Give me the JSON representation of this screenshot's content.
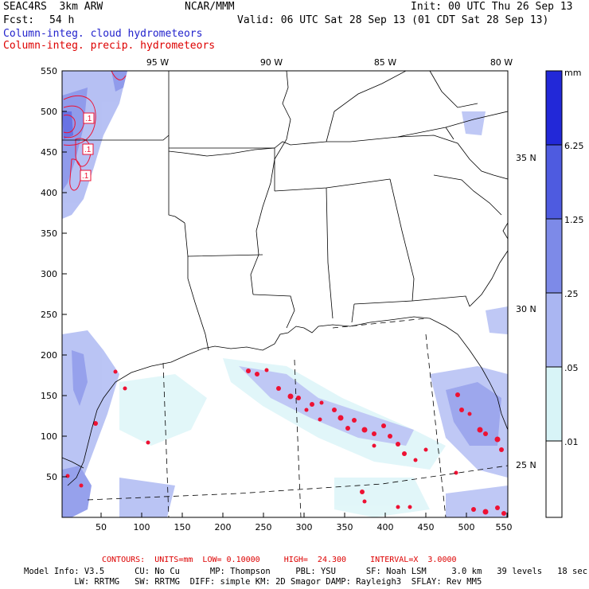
{
  "header": {
    "model": "SEAC4RS  3km ARW",
    "org": "NCAR/MMM",
    "init": "Init: 00 UTC Thu 26 Sep 13",
    "fcst_label": "Fcst:",
    "fcst_value": "54 h",
    "valid": "Valid: 06 UTC Sat 28 Sep 13 (01 CDT Sat 28 Sep 13)",
    "legend_cloud": "Column-integ. cloud hydrometeors",
    "legend_precip": "Column-integ. precip. hydrometeors"
  },
  "colors": {
    "cloud_text": "#2222cc",
    "precip_text": "#dd0000",
    "footer_red": "#dd0000",
    "scale": [
      "#ffffff",
      "#d8f4f7",
      "#aab6f2",
      "#7d8ae8",
      "#4e5be0",
      "#2228d8"
    ]
  },
  "map": {
    "lon_labels": [
      "95 W",
      "90 W",
      "85 W",
      "80 W"
    ],
    "lat_labels": [
      "35 N",
      "30 N",
      "25 N"
    ],
    "y_ticks": [
      "550",
      "500",
      "450",
      "400",
      "350",
      "300",
      "250",
      "200",
      "150",
      "100",
      "50"
    ],
    "x_ticks": [
      "50",
      "100",
      "150",
      "200",
      "250",
      "300",
      "350",
      "400",
      "450",
      "500",
      "550"
    ],
    "contour_labels": [
      ".1",
      ".1",
      ".1"
    ]
  },
  "colorbar": {
    "unit": "mm",
    "labels": [
      "6.25",
      "1.25",
      ".25",
      ".05",
      ".01"
    ]
  },
  "footer": {
    "contours_line": "CONTOURS:  UNITS=mm  LOW= 0.10000     HIGH=  24.300     INTERVAL=X  3.0000",
    "model_line1": "Model Info: V3.5      CU: No Cu      MP: Thompson     PBL: YSU      SF: Noah LSM     3.0 km   39 levels   18 sec",
    "model_line2": "          LW: RRTMG   SW: RRTMG  DIFF: simple KM: 2D Smagor DAMP: Rayleigh3  SFLAY: Rev MM5"
  }
}
